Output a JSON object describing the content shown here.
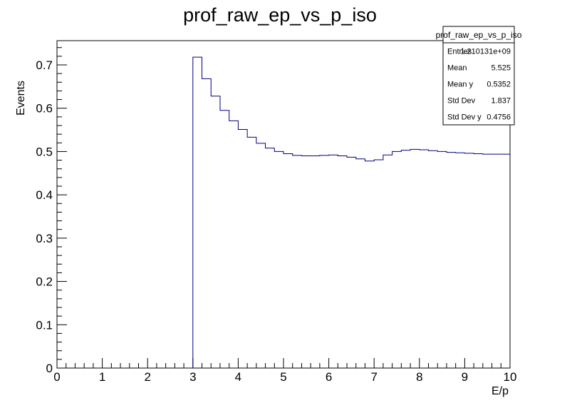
{
  "chart_data": {
    "type": "line",
    "title": "prof_raw_ep_vs_p_iso",
    "xlabel": "E/p",
    "ylabel": "Events",
    "xlim": [
      0,
      10
    ],
    "ylim": [
      0,
      0.756
    ],
    "x_ticks": [
      "0",
      "1",
      "2",
      "3",
      "4",
      "5",
      "6",
      "7",
      "8",
      "9",
      "10"
    ],
    "y_ticks": [
      "0",
      "0.1",
      "0.2",
      "0.3",
      "0.4",
      "0.5",
      "0.6",
      "0.7"
    ],
    "line_color": "#000080",
    "grid": false,
    "bins": {
      "edges": [
        3.0,
        3.2,
        3.4,
        3.6,
        3.8,
        4.0,
        4.2,
        4.4,
        4.6,
        4.8,
        5.0,
        5.2,
        5.4,
        5.6,
        5.8,
        6.0,
        6.2,
        6.4,
        6.6,
        6.8,
        7.0,
        7.2,
        7.4,
        7.6,
        7.8,
        8.0,
        8.2,
        8.4,
        8.6,
        8.8,
        9.0,
        9.2,
        9.4,
        9.6,
        9.8,
        10.0
      ],
      "values": [
        0.718,
        0.668,
        0.628,
        0.595,
        0.571,
        0.551,
        0.533,
        0.519,
        0.508,
        0.5,
        0.495,
        0.491,
        0.49,
        0.49,
        0.491,
        0.492,
        0.49,
        0.487,
        0.483,
        0.478,
        0.481,
        0.492,
        0.5,
        0.503,
        0.505,
        0.504,
        0.502,
        0.5,
        0.498,
        0.497,
        0.496,
        0.495,
        0.494,
        0.494,
        0.494
      ]
    },
    "stats_box": {
      "title": "prof_raw_ep_vs_p_iso",
      "rows": [
        {
          "label": "Entries",
          "value": "1.210131e+09"
        },
        {
          "label": "Mean",
          "value": "5.525"
        },
        {
          "label": "Mean y",
          "value": "0.5352"
        },
        {
          "label": "Std Dev",
          "value": "1.837"
        },
        {
          "label": "Std Dev y",
          "value": "0.4756"
        }
      ]
    }
  }
}
